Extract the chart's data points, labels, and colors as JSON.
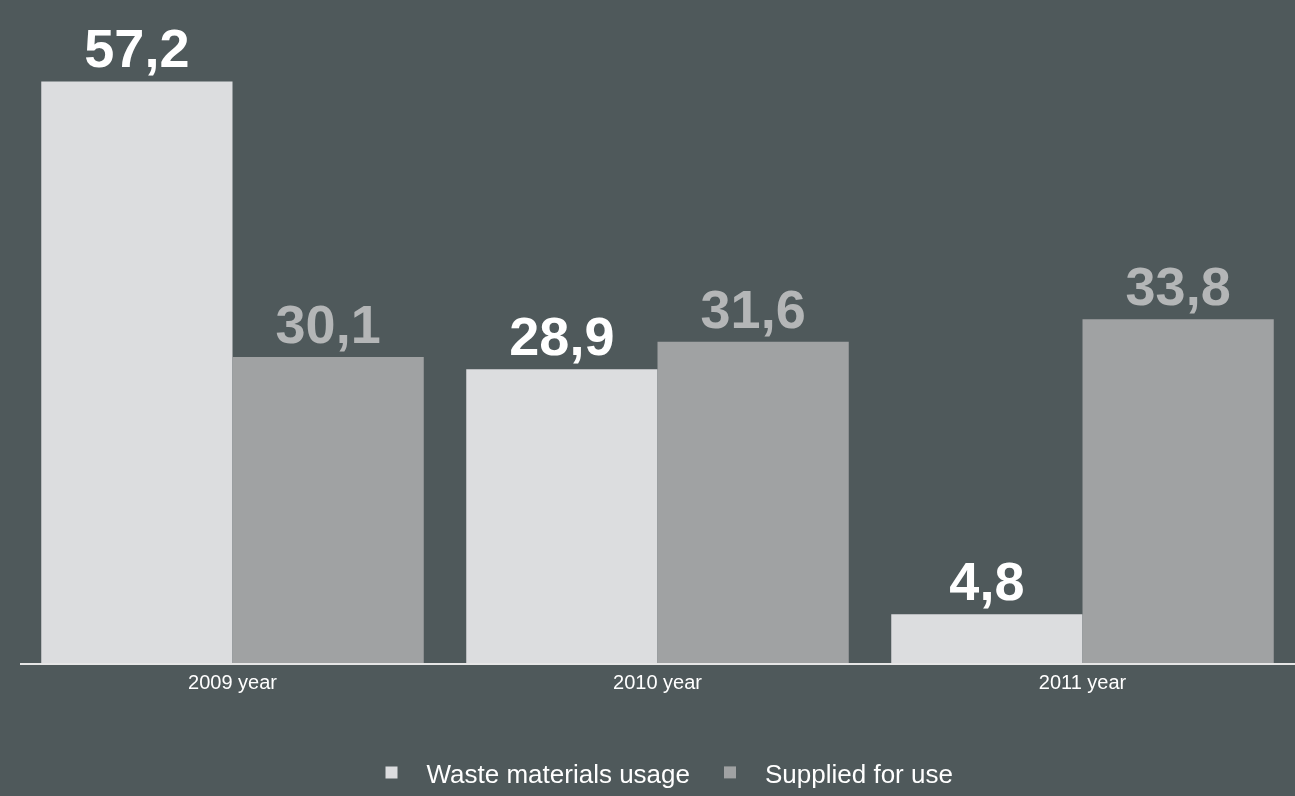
{
  "chart_data": {
    "type": "bar",
    "categories": [
      "2009 year",
      "2010 year",
      "2011 year"
    ],
    "series": [
      {
        "name": "Waste materials usage",
        "color": "#dcdddf",
        "values": [
          57.2,
          28.9,
          4.8
        ],
        "value_labels": [
          "57,2",
          "28,9",
          "4,8"
        ]
      },
      {
        "name": "Supplied for use",
        "color": "#a0a2a3",
        "values": [
          30.1,
          31.6,
          33.8
        ],
        "value_labels": [
          "30,1",
          "31,6",
          "33,8"
        ]
      }
    ],
    "legend": "bottom"
  }
}
